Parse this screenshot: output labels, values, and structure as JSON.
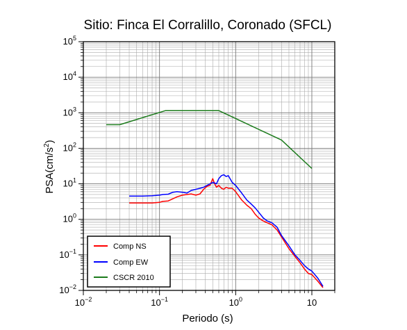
{
  "chart_data": {
    "type": "line",
    "title": "Sitio: Finca El Corralillo, Coronado (SFCL)",
    "xlabel": "Periodo (s)",
    "ylabel_main": "PSA(cm/s",
    "ylabel_sup": "2",
    "ylabel_close": ")",
    "x_scale": "log",
    "y_scale": "log",
    "xlim": [
      0.01,
      20
    ],
    "ylim": [
      0.01,
      100000
    ],
    "grid": true,
    "legend_position": "bottom-left",
    "x_ticks": [
      {
        "base": "10",
        "exp": "−2",
        "value": 0.01
      },
      {
        "base": "10",
        "exp": "−1",
        "value": 0.1
      },
      {
        "base": "10",
        "exp": "0",
        "value": 1
      },
      {
        "base": "10",
        "exp": "",
        "value": 10
      }
    ],
    "y_ticks": [
      {
        "base": "10",
        "exp": "−2",
        "value": 0.01
      },
      {
        "base": "10",
        "exp": "−1",
        "value": 0.1
      },
      {
        "base": "10",
        "exp": "0",
        "value": 1
      },
      {
        "base": "10",
        "exp": "1",
        "value": 10
      },
      {
        "base": "10",
        "exp": "2",
        "value": 100
      },
      {
        "base": "10",
        "exp": "3",
        "value": 1000
      },
      {
        "base": "10",
        "exp": "4",
        "value": 10000
      },
      {
        "base": "10",
        "exp": "5",
        "value": 100000
      }
    ],
    "series": [
      {
        "name": "Comp NS",
        "color": "#ff0000",
        "x": [
          0.04,
          0.06,
          0.08,
          0.1,
          0.11,
          0.13,
          0.15,
          0.17,
          0.2,
          0.23,
          0.26,
          0.3,
          0.34,
          0.38,
          0.42,
          0.46,
          0.5,
          0.53,
          0.56,
          0.6,
          0.65,
          0.7,
          0.75,
          0.8,
          0.9,
          1.0,
          1.2,
          1.4,
          1.6,
          1.8,
          2.0,
          2.3,
          2.6,
          3.0,
          3.5,
          4.0,
          5.0,
          6.0,
          7.0,
          8.0,
          9.0,
          10.0,
          12.0,
          14.0
        ],
        "y": [
          2.9,
          2.9,
          2.9,
          3.0,
          3.2,
          3.3,
          3.8,
          4.3,
          4.8,
          5.0,
          5.2,
          4.8,
          5.2,
          7.0,
          8.5,
          9.0,
          14.0,
          10.0,
          8.0,
          9.0,
          7.5,
          7.0,
          8.0,
          7.5,
          7.5,
          6.0,
          3.5,
          2.5,
          2.0,
          1.4,
          1.1,
          0.9,
          0.8,
          0.7,
          0.5,
          0.32,
          0.15,
          0.09,
          0.06,
          0.04,
          0.03,
          0.028,
          0.018,
          0.012
        ]
      },
      {
        "name": "Comp EW",
        "color": "#0000ff",
        "x": [
          0.04,
          0.06,
          0.08,
          0.1,
          0.11,
          0.13,
          0.15,
          0.17,
          0.2,
          0.23,
          0.26,
          0.3,
          0.34,
          0.38,
          0.42,
          0.46,
          0.5,
          0.53,
          0.56,
          0.6,
          0.65,
          0.7,
          0.75,
          0.8,
          0.9,
          1.0,
          1.2,
          1.4,
          1.6,
          1.8,
          2.0,
          2.3,
          2.6,
          3.0,
          3.5,
          4.0,
          5.0,
          6.0,
          7.0,
          8.0,
          9.0,
          10.0,
          12.0,
          14.0
        ],
        "y": [
          4.5,
          4.5,
          4.6,
          4.8,
          5.0,
          5.1,
          5.8,
          6.0,
          5.8,
          5.5,
          6.5,
          7.0,
          7.5,
          8.0,
          9.0,
          10.0,
          11.0,
          10.5,
          10.0,
          14.0,
          17.0,
          18.0,
          16.0,
          17.0,
          11.0,
          9.0,
          5.5,
          3.5,
          2.7,
          2.1,
          1.6,
          1.1,
          0.9,
          0.8,
          0.6,
          0.35,
          0.18,
          0.1,
          0.07,
          0.05,
          0.04,
          0.035,
          0.022,
          0.013
        ]
      },
      {
        "name": "CSCR 2010",
        "color": "#1a7a1a",
        "x": [
          0.02,
          0.03,
          0.12,
          0.6,
          4.0,
          10.0
        ],
        "y": [
          460,
          460,
          1150,
          1150,
          170,
          27
        ]
      }
    ]
  }
}
